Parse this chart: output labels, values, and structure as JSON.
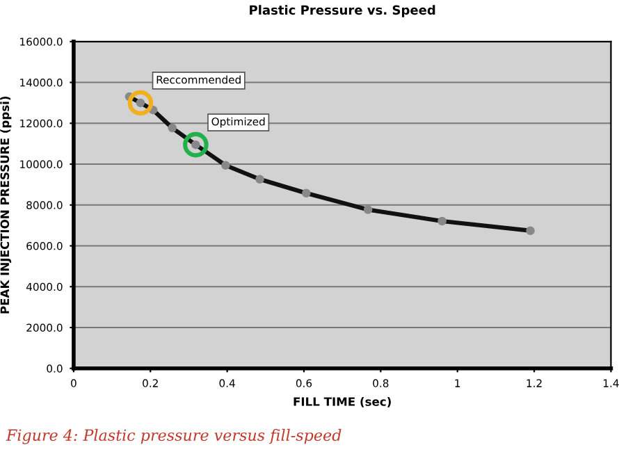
{
  "chart_data": {
    "type": "line",
    "title": "Plastic Pressure vs. Speed",
    "xlabel": "FILL TIME (sec)",
    "ylabel": "PEAK INJECTION PRESSURE (ppsi)",
    "xlim": [
      0,
      1.4
    ],
    "xticks": [
      0,
      0.2,
      0.4,
      0.6,
      0.8,
      1,
      1.2,
      1.4
    ],
    "ylim": [
      0,
      16000
    ],
    "yticks": [
      {
        "value": 0,
        "label": "0.0"
      },
      {
        "value": 2000,
        "label": "2000.0"
      },
      {
        "value": 4000,
        "label": "4000.0"
      },
      {
        "value": 6000,
        "label": "6000.0"
      },
      {
        "value": 8000,
        "label": "8000.0"
      },
      {
        "value": 10000,
        "label": "10000.0"
      },
      {
        "value": 12000,
        "label": "12000.0"
      },
      {
        "value": 14000,
        "label": "14000.0"
      },
      {
        "value": 16000,
        "label": "16000.0"
      }
    ],
    "grid": "y",
    "marker": "circle",
    "line_style": "solid",
    "series": [
      {
        "color": "#111111",
        "x": [
          0.145,
          0.174,
          0.207,
          0.257,
          0.318,
          0.396,
          0.485,
          0.606,
          0.767,
          0.96,
          1.19
        ],
        "values": [
          13300,
          13000,
          12650,
          11770,
          10950,
          9940,
          9260,
          8580,
          7770,
          7210,
          6740
        ]
      },
      {
        "type": "scatter",
        "color": "#f0b020",
        "x": [
          0.174
        ],
        "values": [
          13000
        ]
      },
      {
        "type": "scatter",
        "color": "#22b04a",
        "x": [
          0.318
        ],
        "values": [
          10950
        ]
      }
    ],
    "annotations": [
      {
        "text": "Reccommended",
        "x": 0.174,
        "y": 13000
      },
      {
        "text": "Optimized",
        "x": 0.318,
        "y": 10950
      },
      "Figure 4: Plastic pressure versus fill-speed"
    ]
  }
}
